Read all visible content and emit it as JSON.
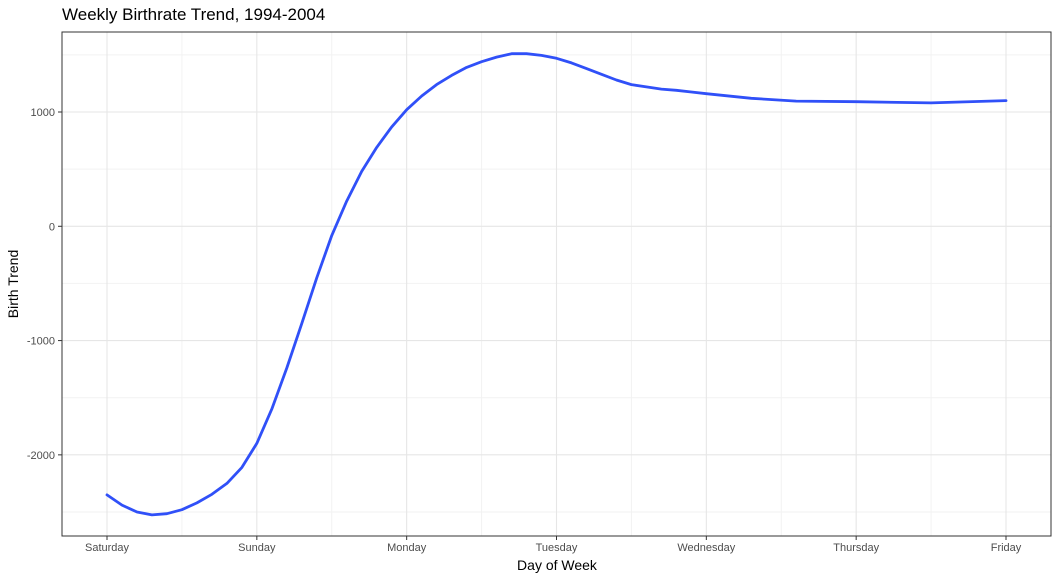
{
  "chart_data": {
    "type": "line",
    "title": "Weekly Birthrate Trend, 1994-2004",
    "xlabel": "Day of Week",
    "ylabel": "Birth Trend",
    "categories": [
      "Saturday",
      "Sunday",
      "Monday",
      "Tuesday",
      "Wednesday",
      "Thursday",
      "Friday"
    ],
    "yticks": [
      -2000,
      -1000,
      0,
      1000
    ],
    "ylim": [
      -2710,
      1700
    ],
    "grid": true,
    "legend": "none",
    "series_color": "#3050f8",
    "series": [
      {
        "x": [
          0,
          0.1,
          0.2,
          0.3,
          0.4,
          0.5,
          0.6,
          0.7,
          0.8,
          0.9,
          1.0,
          1.1,
          1.2,
          1.3,
          1.4,
          1.5,
          1.6,
          1.7,
          1.8,
          1.9,
          2.0,
          2.1,
          2.2,
          2.3,
          2.4,
          2.5,
          2.6,
          2.7,
          2.8,
          2.9,
          3.0,
          3.1,
          3.2,
          3.3,
          3.4,
          3.5,
          3.6,
          3.7,
          3.8,
          3.9,
          4.0,
          4.3,
          4.6,
          5.0,
          5.5,
          6.0
        ],
        "values": [
          -2350,
          -2440,
          -2500,
          -2525,
          -2515,
          -2480,
          -2420,
          -2345,
          -2250,
          -2110,
          -1900,
          -1600,
          -1240,
          -850,
          -450,
          -80,
          220,
          480,
          690,
          870,
          1020,
          1140,
          1240,
          1320,
          1390,
          1440,
          1480,
          1510,
          1510,
          1495,
          1470,
          1430,
          1380,
          1330,
          1280,
          1240,
          1220,
          1200,
          1190,
          1175,
          1160,
          1120,
          1095,
          1090,
          1080,
          1100
        ]
      }
    ]
  }
}
